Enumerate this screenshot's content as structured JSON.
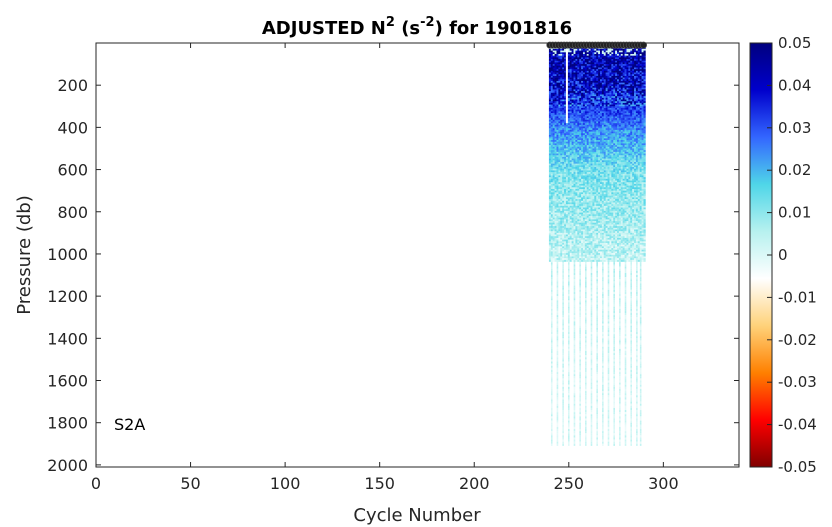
{
  "chart_data": {
    "type": "heatmap",
    "title": {
      "prefix": "ADJUSTED N",
      "sup1": "2",
      "mid": " (s",
      "sup2": "-2",
      "suffix": ") for 1901816"
    },
    "xlabel": "Cycle Number",
    "ylabel": "Pressure (db)",
    "xlim": [
      0,
      340
    ],
    "ylim": [
      2010,
      0
    ],
    "y_reversed": true,
    "xticks": [
      0,
      50,
      100,
      150,
      200,
      250,
      300
    ],
    "yticks": [
      200,
      400,
      600,
      800,
      1000,
      1200,
      1400,
      1600,
      1800,
      2000
    ],
    "annotation": "S2A",
    "colorbar": {
      "min": -0.05,
      "max": 0.05,
      "ticks": [
        0.05,
        0.04,
        0.03,
        0.02,
        0.01,
        0,
        -0.01,
        -0.02,
        -0.03,
        -0.04,
        -0.05
      ],
      "tick_labels": [
        "0.05",
        "0.04",
        "0.03",
        "0.02",
        "0.01",
        "0",
        "-0.01",
        "-0.02",
        "-0.03",
        "-0.04",
        "-0.05"
      ],
      "colormap": "jet-like diverging",
      "colors": [
        "#800000",
        "#ff0000",
        "#ff8000",
        "#ffd27a",
        "#ffffff",
        "#b7f1ef",
        "#4fd6e8",
        "#3366ff",
        "#0000cc",
        "#00007f"
      ]
    },
    "data_extent": {
      "cycle_range": [
        240,
        290
      ],
      "dense_pressure_range": [
        20,
        1030
      ],
      "deep_profile_pressure_max": 1910,
      "deep_profile_cycles": [
        241,
        244,
        247,
        250,
        253,
        256,
        259,
        262,
        265,
        268,
        271,
        274,
        277,
        280,
        283,
        286,
        288
      ],
      "surface_markers_pressure": 10
    },
    "value_summary": [
      {
        "pressure": 50,
        "value": 0.045
      },
      {
        "pressure": 200,
        "value": 0.04
      },
      {
        "pressure": 400,
        "value": 0.025
      },
      {
        "pressure": 600,
        "value": 0.012
      },
      {
        "pressure": 800,
        "value": 0.008
      },
      {
        "pressure": 1000,
        "value": 0.004
      },
      {
        "pressure": 1400,
        "value": 0.002
      },
      {
        "pressure": 1800,
        "value": 0.001
      }
    ]
  }
}
